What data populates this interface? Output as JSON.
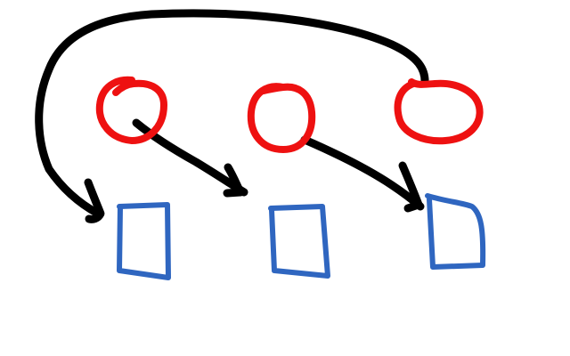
{
  "diagram": {
    "style": "hand-drawn sketch on white canvas",
    "colors": {
      "background": "#ffffff",
      "circle": "#ee1111",
      "square": "#2f66c0",
      "arrow": "#000000"
    },
    "circles": [
      {
        "id": "circle-1"
      },
      {
        "id": "circle-2"
      },
      {
        "id": "circle-3"
      }
    ],
    "squares": [
      {
        "id": "square-1"
      },
      {
        "id": "square-2"
      },
      {
        "id": "square-3"
      }
    ],
    "arrows": [
      {
        "from": "circle-3",
        "to": "square-1",
        "route": "curved-over-top"
      },
      {
        "from": "circle-1",
        "to": "square-2",
        "route": "diagonal"
      },
      {
        "from": "circle-2",
        "to": "square-3",
        "route": "diagonal"
      }
    ]
  }
}
